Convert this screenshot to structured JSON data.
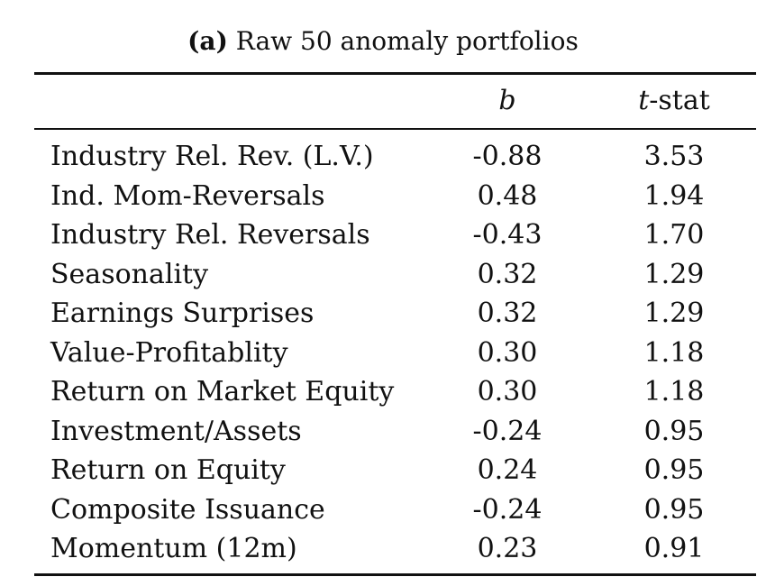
{
  "caption": {
    "label": "(a)",
    "title": "Raw 50 anomaly portfolios"
  },
  "table": {
    "headers": {
      "name": "",
      "b": "b",
      "t_italic": "t",
      "t_rest": "-stat"
    },
    "rows": [
      {
        "name": "Industry Rel. Rev. (L.V.)",
        "b": "-0.88",
        "t": "3.53"
      },
      {
        "name": "Ind. Mom-Reversals",
        "b": "0.48",
        "t": "1.94"
      },
      {
        "name": "Industry Rel. Reversals",
        "b": "-0.43",
        "t": "1.70"
      },
      {
        "name": "Seasonality",
        "b": "0.32",
        "t": "1.29"
      },
      {
        "name": "Earnings Surprises",
        "b": "0.32",
        "t": "1.29"
      },
      {
        "name": "Value-Profitablity",
        "b": "0.30",
        "t": "1.18"
      },
      {
        "name": "Return on Market Equity",
        "b": "0.30",
        "t": "1.18"
      },
      {
        "name": "Investment/Assets",
        "b": "-0.24",
        "t": "0.95"
      },
      {
        "name": "Return on Equity",
        "b": "0.24",
        "t": "0.95"
      },
      {
        "name": "Composite Issuance",
        "b": "-0.24",
        "t": "0.95"
      },
      {
        "name": "Momentum (12m)",
        "b": "0.23",
        "t": "0.91"
      }
    ]
  }
}
